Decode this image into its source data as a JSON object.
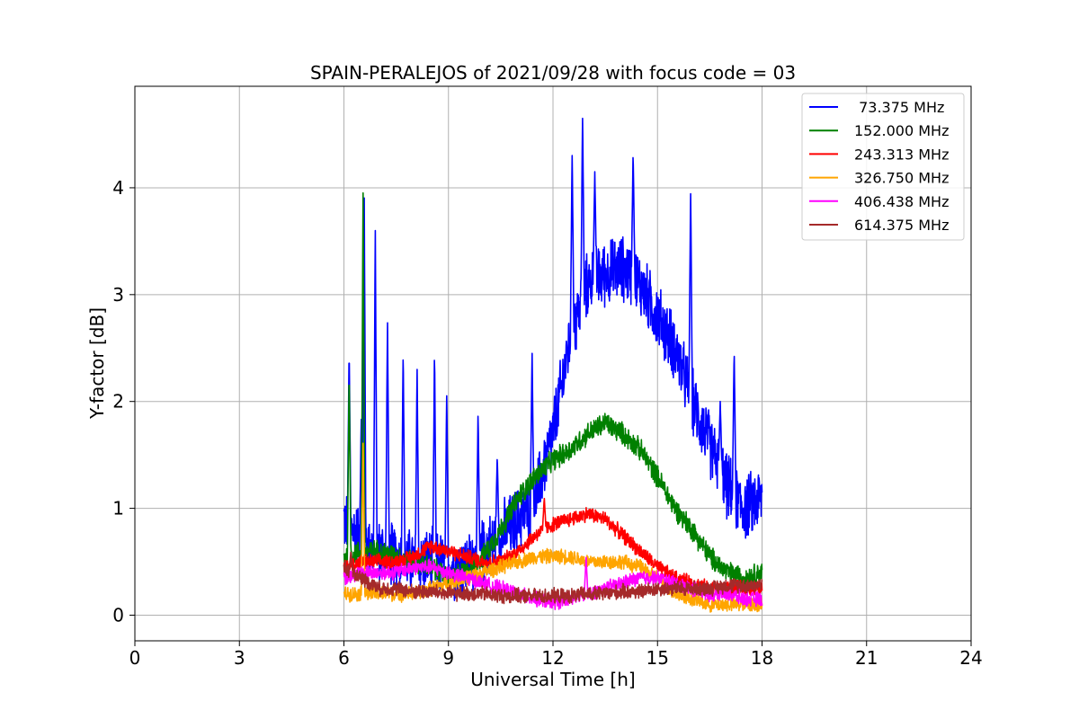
{
  "chart_data": {
    "type": "line",
    "title": "SPAIN-PERALEJOS of 2021/09/28 with focus code = 03",
    "xlabel": "Universal Time [h]",
    "ylabel": "Y-factor [dB]",
    "xlim": [
      0,
      24
    ],
    "ylim": [
      -0.24,
      4.95
    ],
    "xticks": [
      0,
      3,
      6,
      9,
      12,
      15,
      18,
      21,
      24
    ],
    "yticks": [
      0,
      1,
      2,
      3,
      4
    ],
    "grid": true,
    "legend_position": "top-right",
    "series": [
      {
        "name": " 73.375 MHz",
        "color": "#0000ff",
        "x": [
          6.0,
          6.5,
          7.0,
          7.5,
          8.0,
          8.5,
          9.0,
          9.5,
          10.0,
          10.5,
          11.0,
          11.5,
          12.0,
          12.5,
          13.0,
          13.5,
          14.0,
          14.5,
          15.0,
          15.5,
          16.0,
          16.5,
          17.0,
          17.5,
          18.0
        ],
        "y": [
          0.9,
          0.7,
          0.6,
          0.55,
          0.5,
          0.5,
          0.45,
          0.45,
          0.6,
          0.75,
          0.9,
          1.1,
          1.7,
          2.6,
          3.1,
          3.2,
          3.25,
          3.1,
          2.8,
          2.5,
          2.0,
          1.6,
          1.2,
          1.0,
          1.1
        ],
        "spikes": [
          [
            6.15,
            2.5
          ],
          [
            6.5,
            1.9
          ],
          [
            6.58,
            4.1
          ],
          [
            6.9,
            3.6
          ],
          [
            7.25,
            2.8
          ],
          [
            7.7,
            2.5
          ],
          [
            8.1,
            2.3
          ],
          [
            8.6,
            2.5
          ],
          [
            8.95,
            2.1
          ],
          [
            9.85,
            1.9
          ],
          [
            10.4,
            1.5
          ],
          [
            11.4,
            2.45
          ],
          [
            12.55,
            4.35
          ],
          [
            12.85,
            4.7
          ],
          [
            13.2,
            4.15
          ],
          [
            14.3,
            4.35
          ],
          [
            15.95,
            4.0
          ],
          [
            16.8,
            2.0
          ],
          [
            17.2,
            2.5
          ]
        ]
      },
      {
        "name": "152.000 MHz",
        "color": "#008000",
        "x": [
          6.0,
          6.5,
          7.0,
          7.5,
          8.0,
          8.5,
          9.0,
          9.5,
          10.0,
          10.5,
          11.0,
          11.5,
          12.0,
          12.5,
          13.0,
          13.5,
          14.0,
          14.5,
          15.0,
          15.5,
          16.0,
          16.5,
          17.0,
          17.5,
          18.0
        ],
        "y": [
          0.55,
          0.6,
          0.6,
          0.55,
          0.5,
          0.45,
          0.35,
          0.4,
          0.55,
          0.8,
          1.1,
          1.3,
          1.45,
          1.55,
          1.7,
          1.8,
          1.7,
          1.55,
          1.3,
          1.0,
          0.8,
          0.55,
          0.4,
          0.35,
          0.4
        ],
        "spikes": [
          [
            6.15,
            2.3
          ],
          [
            6.55,
            4.05
          ]
        ]
      },
      {
        "name": "243.313 MHz",
        "color": "#ff0000",
        "x": [
          6.0,
          6.5,
          7.0,
          7.5,
          8.0,
          8.5,
          9.0,
          9.5,
          10.0,
          10.5,
          11.0,
          11.5,
          12.0,
          12.5,
          13.0,
          13.5,
          14.0,
          14.5,
          15.0,
          15.5,
          16.0,
          16.5,
          17.0,
          17.5,
          18.0
        ],
        "y": [
          0.45,
          0.5,
          0.5,
          0.5,
          0.55,
          0.65,
          0.6,
          0.55,
          0.5,
          0.5,
          0.6,
          0.75,
          0.85,
          0.9,
          0.95,
          0.9,
          0.75,
          0.6,
          0.45,
          0.35,
          0.3,
          0.25,
          0.25,
          0.25,
          0.25
        ],
        "spikes": [
          [
            11.75,
            1.1
          ]
        ]
      },
      {
        "name": "326.750 MHz",
        "color": "#ffa500",
        "x": [
          6.0,
          6.5,
          7.0,
          7.5,
          8.0,
          8.5,
          9.0,
          9.5,
          10.0,
          10.5,
          11.0,
          11.5,
          12.0,
          12.5,
          13.0,
          13.5,
          14.0,
          14.5,
          15.0,
          15.5,
          16.0,
          16.5,
          17.0,
          17.5,
          18.0
        ],
        "y": [
          0.2,
          0.2,
          0.2,
          0.2,
          0.2,
          0.25,
          0.3,
          0.35,
          0.4,
          0.45,
          0.5,
          0.55,
          0.55,
          0.55,
          0.5,
          0.5,
          0.5,
          0.45,
          0.35,
          0.2,
          0.15,
          0.1,
          0.1,
          0.1,
          0.1
        ],
        "spikes": [
          [
            6.55,
            1.65
          ]
        ]
      },
      {
        "name": "406.438 MHz",
        "color": "#ff00ff",
        "x": [
          6.0,
          6.5,
          7.0,
          7.5,
          8.0,
          8.5,
          9.0,
          9.5,
          10.0,
          10.5,
          11.0,
          11.5,
          12.0,
          12.5,
          13.0,
          13.5,
          14.0,
          14.5,
          15.0,
          15.5,
          16.0,
          16.5,
          17.0,
          17.5,
          18.0
        ],
        "y": [
          0.35,
          0.4,
          0.4,
          0.4,
          0.45,
          0.45,
          0.4,
          0.35,
          0.3,
          0.25,
          0.2,
          0.15,
          0.12,
          0.15,
          0.2,
          0.25,
          0.3,
          0.35,
          0.35,
          0.3,
          0.25,
          0.2,
          0.2,
          0.15,
          0.15
        ],
        "spikes": [
          [
            12.95,
            0.55
          ]
        ]
      },
      {
        "name": "614.375 MHz",
        "color": "#a52a2a",
        "x": [
          6.0,
          6.5,
          7.0,
          7.5,
          8.0,
          8.5,
          9.0,
          9.5,
          10.0,
          10.5,
          11.0,
          11.5,
          12.0,
          12.5,
          13.0,
          13.5,
          14.0,
          14.5,
          15.0,
          15.5,
          16.0,
          16.5,
          17.0,
          17.5,
          18.0
        ],
        "y": [
          0.45,
          0.35,
          0.25,
          0.25,
          0.22,
          0.22,
          0.2,
          0.2,
          0.2,
          0.18,
          0.18,
          0.18,
          0.18,
          0.18,
          0.2,
          0.2,
          0.22,
          0.22,
          0.25,
          0.25,
          0.25,
          0.25,
          0.28,
          0.28,
          0.28
        ],
        "spikes": [
          [
            6.2,
            0.6
          ]
        ]
      }
    ]
  }
}
